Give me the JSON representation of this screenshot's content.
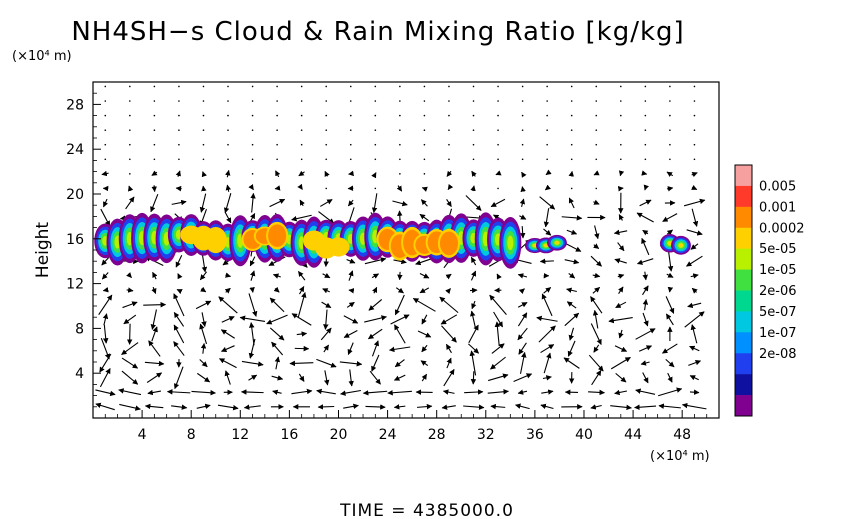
{
  "chart_data": {
    "type": "heatmap",
    "title": "NH4SH−s Cloud & Rain Mixing Ratio [kg/kg]",
    "xlabel": "",
    "ylabel": "Height",
    "x_unit_label": "(×10⁴ m)",
    "y_unit_label": "(×10⁴ m)",
    "x_ticks": [
      4,
      8,
      12,
      16,
      20,
      24,
      28,
      32,
      36,
      40,
      44,
      48
    ],
    "y_ticks": [
      4,
      8,
      12,
      16,
      20,
      24,
      28
    ],
    "xlim": [
      0,
      51
    ],
    "ylim": [
      0,
      30
    ],
    "colorbar": {
      "labels": [
        "0.005",
        "0.001",
        "0.0002",
        "5e-05",
        "1e-05",
        "2e-06",
        "5e-07",
        "1e-07",
        "2e-08"
      ],
      "colors": [
        "#f7a0a0",
        "#ff3a2a",
        "#ff8a00",
        "#ffd000",
        "#b8f000",
        "#40e040",
        "#00d890",
        "#00c8e0",
        "#0090ff",
        "#2040f0",
        "#1010a0",
        "#800090"
      ]
    },
    "cloud_regions": [
      {
        "x_range": [
          1,
          34.5
        ],
        "y_range": [
          13.5,
          18.5
        ],
        "peak_level": "0.0002",
        "peak_x": [
          24,
          29
        ]
      },
      {
        "x_range": [
          35.5,
          39
        ],
        "y_range": [
          15,
          16.5
        ],
        "peak_level": "1e-05"
      },
      {
        "x_range": [
          46.5,
          49
        ],
        "y_range": [
          14.5,
          16.5
        ],
        "peak_level": "5e-05"
      }
    ],
    "vectors": "wind field shown as arrows on a regular grid",
    "footer": "TIME  =  4385000.0"
  }
}
